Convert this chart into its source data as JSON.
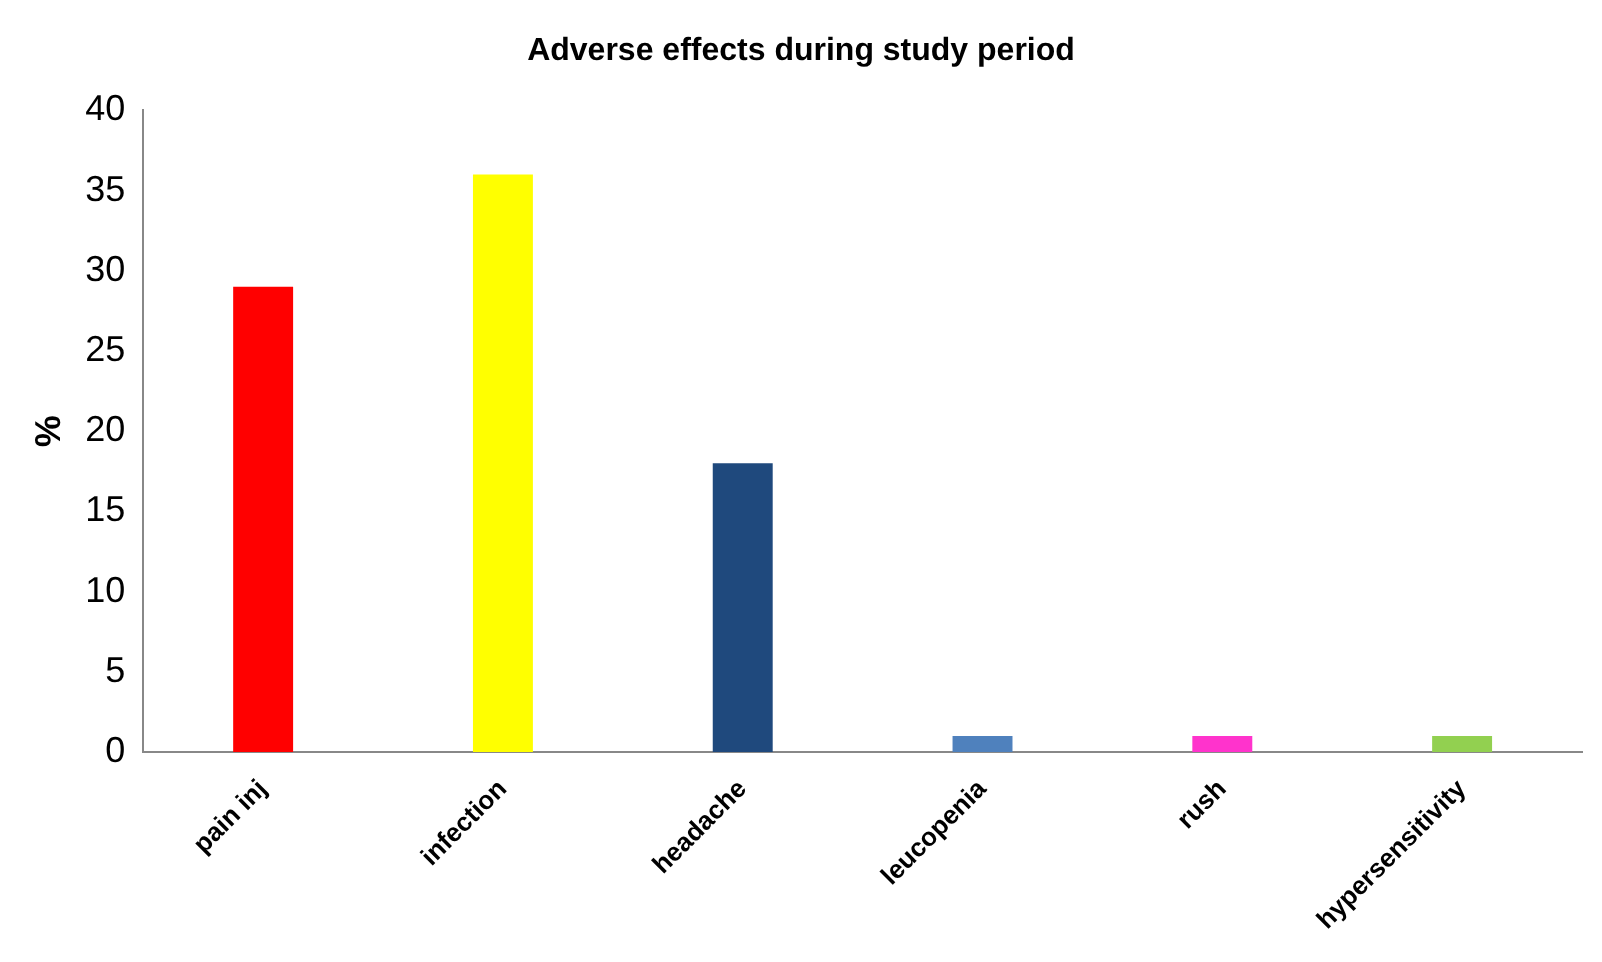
{
  "chart_data": {
    "type": "bar",
    "title": "Adverse effects during study period",
    "ylabel": "%",
    "categories": [
      "pain inj",
      "infection",
      "headache",
      "leucopenia",
      "rush",
      "hypersensitivity"
    ],
    "values": [
      29,
      36,
      18,
      1,
      1,
      1
    ],
    "colors": [
      "#ff0000",
      "#ffff00",
      "#1f497d",
      "#4f81bd",
      "#ff33cc",
      "#92d050"
    ],
    "ylim": [
      0,
      40
    ],
    "yticks": [
      0,
      5,
      10,
      15,
      20,
      25,
      30,
      35,
      40
    ],
    "grid": false,
    "legend": false
  }
}
